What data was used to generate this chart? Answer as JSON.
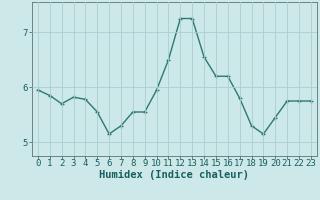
{
  "x": [
    0,
    1,
    2,
    3,
    4,
    5,
    6,
    7,
    8,
    9,
    10,
    11,
    12,
    13,
    14,
    15,
    16,
    17,
    18,
    19,
    20,
    21,
    22,
    23
  ],
  "y": [
    5.95,
    5.85,
    5.7,
    5.82,
    5.78,
    5.55,
    5.15,
    5.3,
    5.55,
    5.55,
    5.95,
    6.5,
    7.25,
    7.25,
    6.55,
    6.2,
    6.2,
    5.8,
    5.3,
    5.15,
    5.45,
    5.75,
    5.75,
    5.75
  ],
  "line_color": "#2d7a6e",
  "marker": "+",
  "marker_size": 3.5,
  "bg_color": "#cce8e8",
  "grid_color": "#aacece",
  "xlabel": "Humidex (Indice chaleur)",
  "ylabel": "",
  "title": "",
  "ylim": [
    4.75,
    7.55
  ],
  "xlim": [
    -0.5,
    23.5
  ],
  "yticks": [
    5,
    6,
    7
  ],
  "xticks": [
    0,
    1,
    2,
    3,
    4,
    5,
    6,
    7,
    8,
    9,
    10,
    11,
    12,
    13,
    14,
    15,
    16,
    17,
    18,
    19,
    20,
    21,
    22,
    23
  ],
  "tick_fontsize": 6.5,
  "label_fontsize": 7.5,
  "linewidth": 1.0
}
